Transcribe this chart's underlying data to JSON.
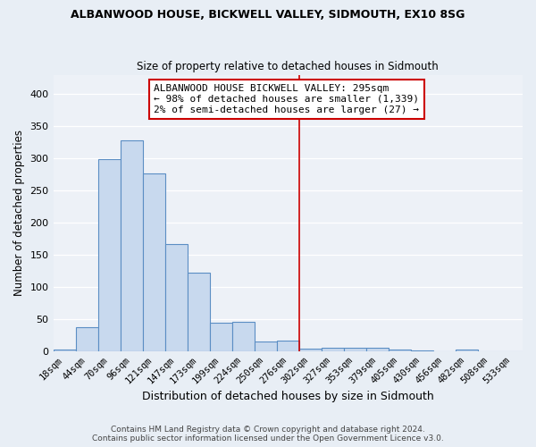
{
  "title": "ALBANWOOD HOUSE, BICKWELL VALLEY, SIDMOUTH, EX10 8SG",
  "subtitle": "Size of property relative to detached houses in Sidmouth",
  "xlabel": "Distribution of detached houses by size in Sidmouth",
  "ylabel": "Number of detached properties",
  "bar_labels": [
    "18sqm",
    "44sqm",
    "70sqm",
    "96sqm",
    "121sqm",
    "147sqm",
    "173sqm",
    "199sqm",
    "224sqm",
    "250sqm",
    "276sqm",
    "302sqm",
    "327sqm",
    "353sqm",
    "379sqm",
    "405sqm",
    "430sqm",
    "456sqm",
    "482sqm",
    "508sqm",
    "533sqm"
  ],
  "bar_values": [
    3,
    38,
    299,
    328,
    276,
    167,
    122,
    44,
    46,
    15,
    17,
    4,
    6,
    6,
    6,
    3,
    1,
    0,
    3,
    0,
    0
  ],
  "bar_color": "#c8d9ee",
  "bar_edge_color": "#5b8ec4",
  "annotation_text_line1": "ALBANWOOD HOUSE BICKWELL VALLEY: 295sqm",
  "annotation_text_line2": "← 98% of detached houses are smaller (1,339)",
  "annotation_text_line3": "2% of semi-detached houses are larger (27) →",
  "annotation_box_color": "#ffffff",
  "annotation_border_color": "#cc0000",
  "vline_color": "#cc0000",
  "vline_x_index": 11,
  "ylim": [
    0,
    430
  ],
  "yticks": [
    0,
    50,
    100,
    150,
    200,
    250,
    300,
    350,
    400
  ],
  "footer_line1": "Contains HM Land Registry data © Crown copyright and database right 2024.",
  "footer_line2": "Contains public sector information licensed under the Open Government Licence v3.0.",
  "bg_color": "#e8eef5",
  "plot_bg_color": "#edf1f7"
}
